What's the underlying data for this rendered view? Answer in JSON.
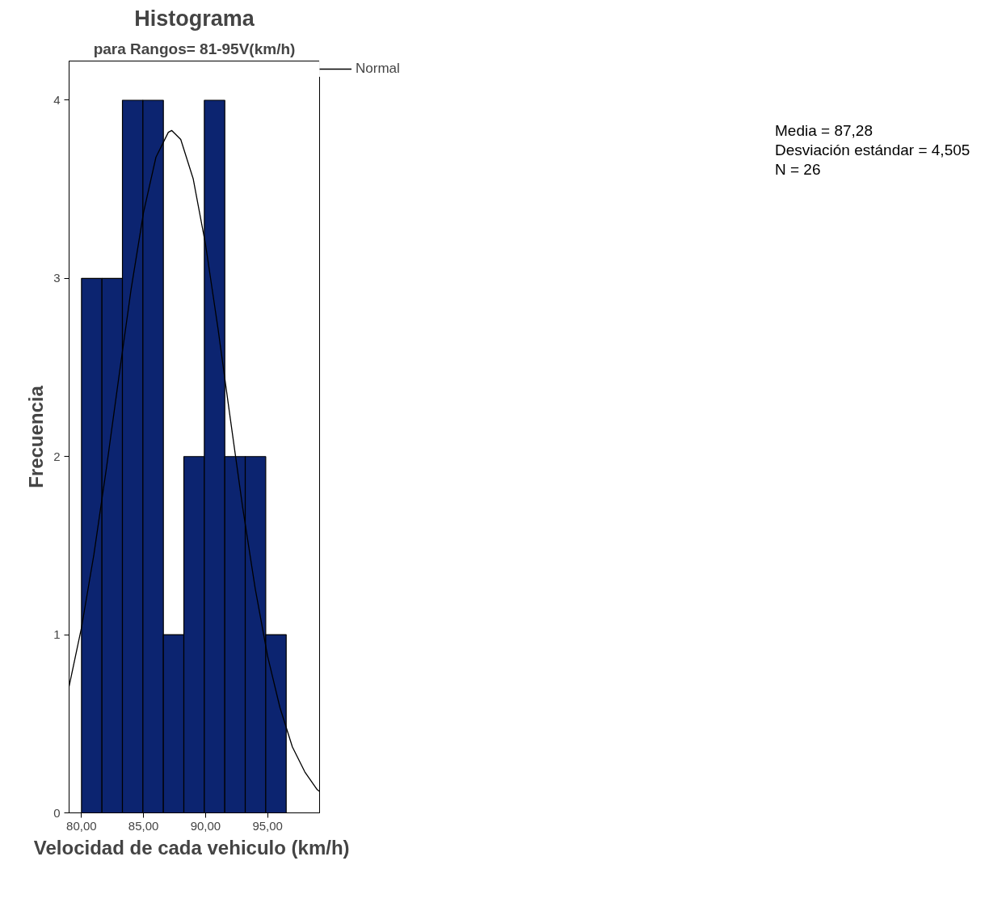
{
  "chart_data": {
    "type": "histogram",
    "title": "Histograma",
    "subtitle": "para Rangos= 81-95V(km/h)",
    "xlabel": "Velocidad de cada  vehiculo (km/h)",
    "ylabel": "Frecuencia",
    "bins": [
      80.0,
      81.65,
      83.3,
      84.95,
      86.6,
      88.25,
      89.9,
      91.55,
      93.2,
      94.85,
      96.5
    ],
    "values": [
      3,
      3,
      4,
      4,
      1,
      2,
      4,
      2,
      2,
      1
    ],
    "color": "#0c2470",
    "series": [
      {
        "name": "Normal",
        "type": "line",
        "color": "#000000",
        "x": [
          79,
          80,
          81,
          82,
          83,
          84,
          85,
          86,
          87,
          87.28,
          88,
          89,
          90,
          91,
          92,
          93,
          94,
          95,
          96,
          97,
          98,
          99,
          99.19
        ],
        "values": [
          0.71,
          1.04,
          1.45,
          1.93,
          2.44,
          2.94,
          3.37,
          3.68,
          3.82,
          3.83,
          3.78,
          3.56,
          3.19,
          2.72,
          2.21,
          1.71,
          1.26,
          0.88,
          0.59,
          0.37,
          0.23,
          0.13,
          0.12
        ]
      }
    ],
    "xlim": [
      79.0,
      99.19
    ],
    "ylim": [
      0,
      4.22
    ],
    "xticks": [
      {
        "value": 80,
        "label": "80,00"
      },
      {
        "value": 85,
        "label": "85,00"
      },
      {
        "value": 90,
        "label": "90,00"
      },
      {
        "value": 95,
        "label": "95,00"
      }
    ],
    "yticks": [
      0,
      1,
      2,
      3,
      4
    ],
    "annotations": [
      "Media = 87,28",
      "Desviación estándar = 4,505",
      "N = 26"
    ],
    "legend": "top right",
    "grid": false,
    "line_style": "solid",
    "marker": "none"
  }
}
